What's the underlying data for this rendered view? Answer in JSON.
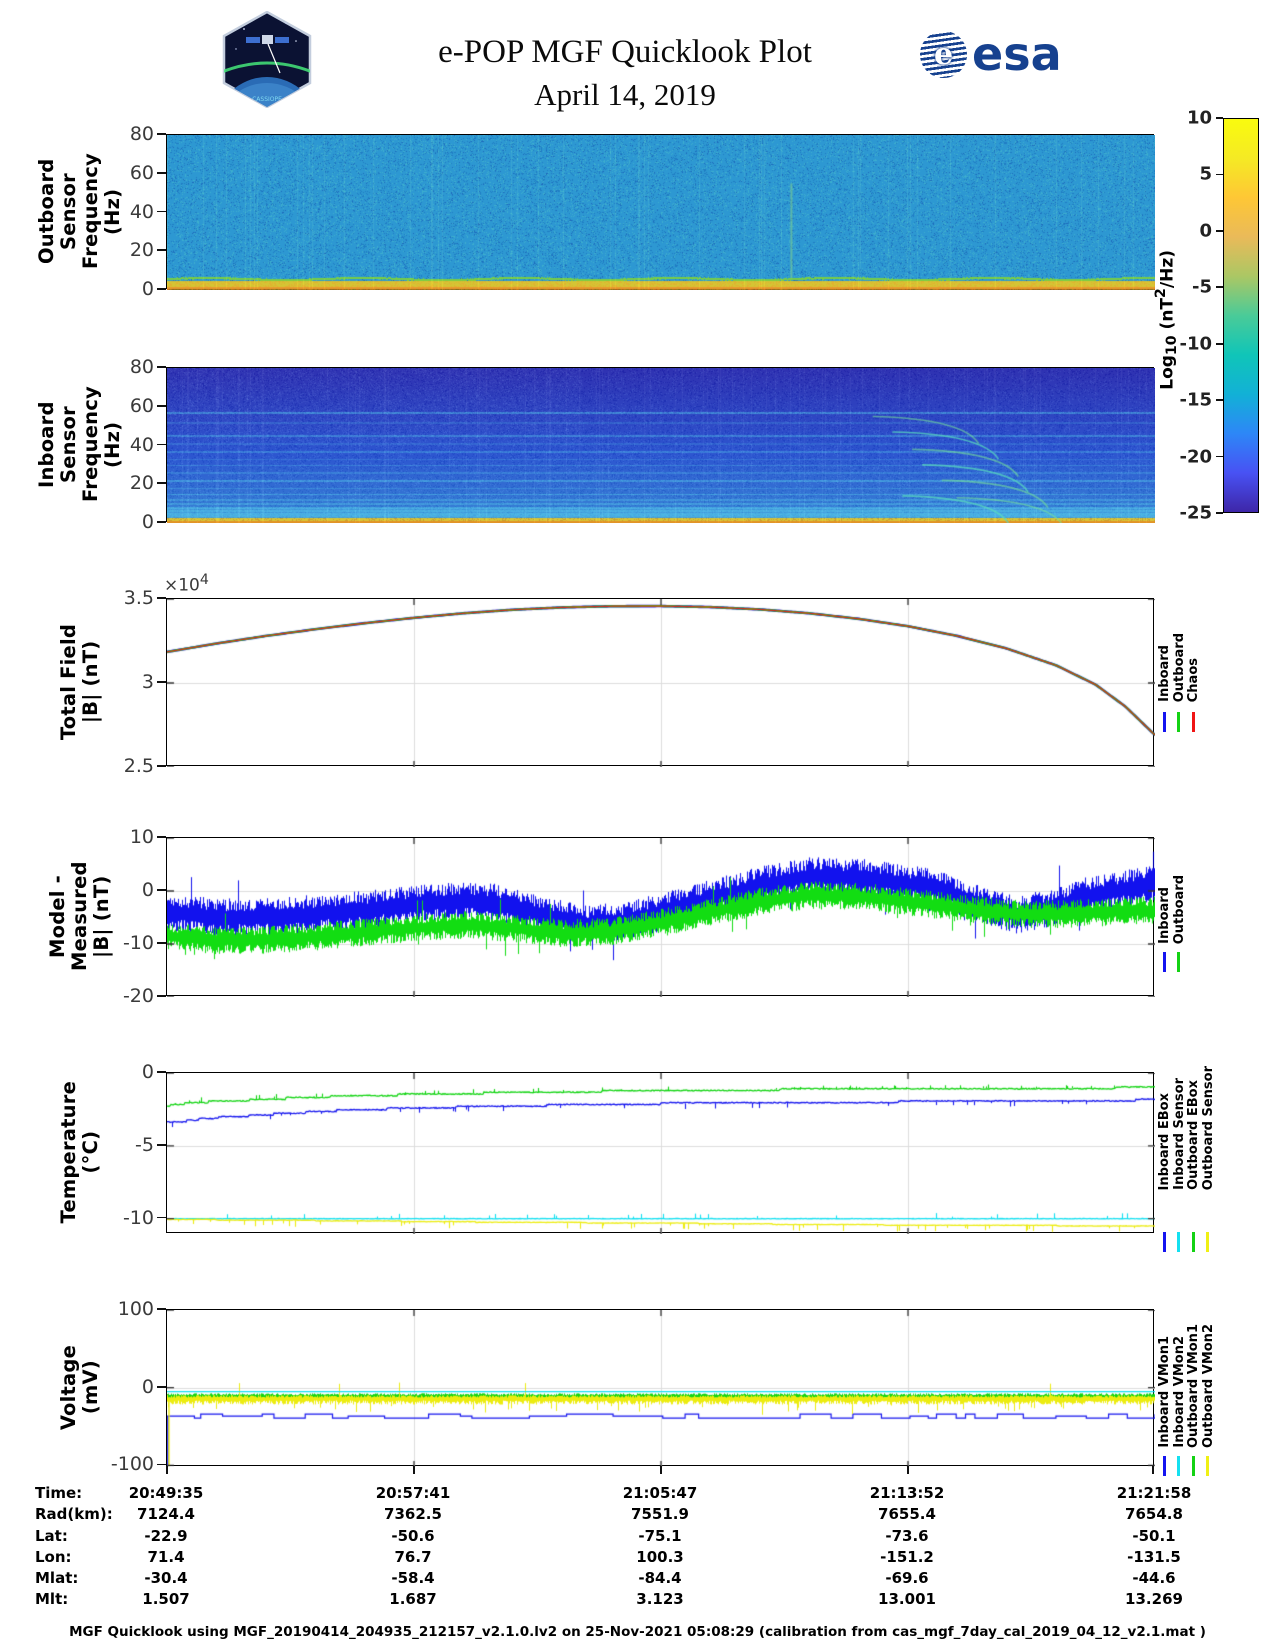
{
  "header": {
    "title": "e-POP MGF Quicklook Plot",
    "date": "April 14, 2019",
    "esa_text": "esa",
    "patch_text": "CASSIOPE"
  },
  "colorbar": {
    "label_prefix": "Log",
    "label_sub": "10",
    "label_mid": " (nT",
    "label_sup": "2",
    "label_suffix": "/Hz)",
    "ticks": [
      "10",
      "5",
      "0",
      "-5",
      "-10",
      "-15",
      "-20",
      "-25"
    ],
    "gradient": [
      "#f9fb0e",
      "#f5ea24",
      "#fec735",
      "#eaba59",
      "#abc764",
      "#4acb98",
      "#10c5b8",
      "#12b1d6",
      "#2d87f7",
      "#4852f4",
      "#3e26a8"
    ]
  },
  "time_axis": {
    "ticks": [
      "20:49:35",
      "20:57:41",
      "21:05:47",
      "21:13:52",
      "21:21:58"
    ]
  },
  "chart_data": [
    {
      "id": "outboard-spectrogram",
      "type": "heatmap",
      "ylabel": "Outboard Sensor\nFrequency (Hz)",
      "ylim": [
        0,
        80
      ],
      "yticks": [
        "80",
        "60",
        "40",
        "20",
        "0"
      ],
      "value_units": "Log10 (nT^2/Hz)",
      "base_level": -13,
      "features": {
        "green_line_hz": 6,
        "yellow_band_hz": [
          2,
          5
        ],
        "orange_band_hz": [
          0,
          2
        ],
        "burst_x": 0.632
      },
      "palette": {
        "base": [
          45,
          152,
          210
        ],
        "dark": [
          32,
          125,
          196
        ],
        "light": [
          62,
          175,
          206
        ],
        "green": [
          120,
          205,
          70
        ],
        "yellow": [
          213,
          197,
          52
        ],
        "orange": [
          232,
          152,
          44
        ]
      },
      "seed": 7
    },
    {
      "id": "inboard-spectrogram",
      "type": "heatmap",
      "ylabel": "Inboard Sensor\nFrequency (Hz)",
      "ylim": [
        0,
        80
      ],
      "yticks": [
        "80",
        "60",
        "40",
        "20",
        "0"
      ],
      "value_units": "Log10 (nT^2/Hz)",
      "base_level": -17,
      "stripes_hz": [
        [
          57,
          0.5
        ],
        [
          52,
          0.22
        ],
        [
          45,
          0.42
        ],
        [
          41,
          0.2
        ],
        [
          37,
          0.38
        ],
        [
          33,
          0.24
        ],
        [
          30,
          0.34
        ],
        [
          26,
          0.3
        ],
        [
          22,
          0.5
        ],
        [
          18,
          0.34
        ],
        [
          15,
          0.55
        ],
        [
          12,
          0.4
        ],
        [
          10,
          0.45
        ],
        [
          8,
          0.55
        ],
        [
          6.5,
          0.5
        ],
        [
          5,
          0.55
        ],
        [
          4,
          0.5
        ]
      ],
      "arcs": [
        [
          0.775,
          55
        ],
        [
          0.795,
          47
        ],
        [
          0.815,
          38
        ],
        [
          0.825,
          30
        ],
        [
          0.845,
          22
        ],
        [
          0.805,
          14
        ],
        [
          0.86,
          13
        ]
      ],
      "palette": {
        "top": [
          47,
          50,
          178
        ],
        "mid": [
          45,
          85,
          208
        ],
        "bottom": [
          56,
          135,
          214
        ],
        "stripe": [
          82,
          196,
          232
        ],
        "yellow": [
          214,
          198,
          55
        ],
        "orange": [
          226,
          148,
          40
        ]
      },
      "seed": 13
    },
    {
      "id": "total-field",
      "type": "line",
      "ylabel": "Total Field\n|B| (nT)",
      "exp_prefix": "×10",
      "exp_sup": "4",
      "ylim": [
        35000,
        25000
      ],
      "yticks": [
        {
          "v": 35000,
          "t": "3.5"
        },
        {
          "v": 30000,
          "t": "3"
        },
        {
          "v": 25000,
          "t": "2.5"
        }
      ],
      "grid_y": [
        30000
      ],
      "legend": [
        {
          "label": "Inboard",
          "color": "#1414f0"
        },
        {
          "label": "Outboard",
          "color": "#14d214"
        },
        {
          "label": "Chaos",
          "color": "#f01414"
        }
      ],
      "x": [
        0,
        0.05,
        0.1,
        0.15,
        0.2,
        0.25,
        0.3,
        0.35,
        0.4,
        0.45,
        0.5,
        0.55,
        0.6,
        0.65,
        0.7,
        0.75,
        0.8,
        0.85,
        0.9,
        0.94,
        0.97,
        1
      ],
      "y": [
        31850,
        32350,
        32800,
        33200,
        33560,
        33880,
        34150,
        34360,
        34500,
        34570,
        34580,
        34520,
        34380,
        34150,
        33820,
        33380,
        32800,
        32050,
        31050,
        29900,
        28600,
        26900
      ],
      "series": [
        {
          "name": "Inboard",
          "color": "#1414f0",
          "style": "line",
          "width": 2.6,
          "seed": 11
        },
        {
          "name": "Outboard",
          "color": "#14d214",
          "style": "line",
          "width": 2.0,
          "seed": 12
        },
        {
          "name": "Chaos",
          "color": "#e02810",
          "style": "line",
          "width": 1.2,
          "seed": 14
        }
      ]
    },
    {
      "id": "model-measured",
      "type": "line",
      "ylabel": "Model - Measured\n|B| (nT)",
      "ylim": [
        10,
        -20
      ],
      "yticks": [
        {
          "v": 10,
          "t": "10"
        },
        {
          "v": 0,
          "t": "0"
        },
        {
          "v": -10,
          "t": "-10"
        },
        {
          "v": -20,
          "t": "-20"
        }
      ],
      "grid_y": [
        0,
        -10
      ],
      "legend": [
        {
          "label": "Inboard",
          "color": "#1414f0"
        },
        {
          "label": "Outboard",
          "color": "#14d214"
        }
      ],
      "series": [
        {
          "name": "Inboard",
          "color": "#1212ee",
          "style": "noisy",
          "amp": 3.3,
          "spike_p": 0.03,
          "spike": 4,
          "seed": 21,
          "x": [
            0,
            0.05,
            0.1,
            0.15,
            0.2,
            0.25,
            0.3,
            0.33,
            0.37,
            0.42,
            0.46,
            0.5,
            0.55,
            0.6,
            0.65,
            0.7,
            0.73,
            0.78,
            0.82,
            0.86,
            0.9,
            0.93,
            0.96,
            1
          ],
          "y": [
            -4,
            -5,
            -5,
            -4.3,
            -3.6,
            -2.6,
            -1.8,
            -2.2,
            -4,
            -6.3,
            -5.8,
            -4,
            -1.5,
            1,
            2.8,
            2.5,
            1.8,
            0.5,
            -2.5,
            -4.5,
            -3,
            -1,
            0,
            1.5
          ]
        },
        {
          "name": "Outboard",
          "color": "#12dd12",
          "style": "noisy",
          "amp": 2.4,
          "spike_p": 0.02,
          "spike": 3,
          "seed": 22,
          "x": [
            0,
            0.05,
            0.1,
            0.15,
            0.2,
            0.25,
            0.3,
            0.35,
            0.4,
            0.45,
            0.5,
            0.55,
            0.6,
            0.65,
            0.7,
            0.75,
            0.8,
            0.85,
            0.9,
            0.95,
            1
          ],
          "y": [
            -8.5,
            -9.3,
            -9.2,
            -8.6,
            -7.8,
            -7,
            -6.4,
            -7,
            -8,
            -7.6,
            -6,
            -4,
            -2,
            -0.8,
            -1,
            -2,
            -3.2,
            -4.2,
            -4.4,
            -4,
            -3.6
          ]
        }
      ]
    },
    {
      "id": "temperature",
      "type": "line",
      "ylabel": "Temperature\n(°C)",
      "ylim": [
        0,
        -11.05
      ],
      "yticks": [
        {
          "v": 0,
          "t": "0"
        },
        {
          "v": -5,
          "t": "-5"
        },
        {
          "v": -10,
          "t": "-10"
        }
      ],
      "grid_y": [
        -5
      ],
      "legend": [
        {
          "label": "Inboard EBox",
          "color": "#1414f0"
        },
        {
          "label": "Inboard Sensor",
          "color": "#14e0f0"
        },
        {
          "label": "Outboard EBox",
          "color": "#14d214"
        },
        {
          "label": "Outboard Sensor",
          "color": "#f0f014"
        }
      ],
      "series": [
        {
          "name": "Inboard EBox",
          "color": "#1515ee",
          "style": "spiky",
          "dir": -1,
          "spike": 0.3,
          "spike_p": 0.035,
          "q": 0.12,
          "seed": 31,
          "x": [
            0,
            0.02,
            0.04,
            0.07,
            0.1,
            0.14,
            0.18,
            0.25,
            0.32,
            0.4,
            0.5,
            0.6,
            0.7,
            0.8,
            0.9,
            1
          ],
          "y": [
            -3.35,
            -3.3,
            -3.1,
            -3.0,
            -2.85,
            -2.7,
            -2.55,
            -2.4,
            -2.3,
            -2.2,
            -2.1,
            -2.05,
            -2.0,
            -1.95,
            -1.9,
            -1.85
          ]
        },
        {
          "name": "Outboard EBox",
          "color": "#12d412",
          "style": "spiky",
          "dir": 1,
          "spike": 0.25,
          "spike_p": 0.045,
          "q": 0.12,
          "seed": 32,
          "x": [
            0,
            0.03,
            0.06,
            0.1,
            0.15,
            0.2,
            0.3,
            0.4,
            0.5,
            0.6,
            0.7,
            0.8,
            0.9,
            1
          ],
          "y": [
            -2.25,
            -2.0,
            -1.95,
            -1.8,
            -1.65,
            -1.55,
            -1.4,
            -1.3,
            -1.2,
            -1.15,
            -1.1,
            -1.05,
            -1.05,
            -1.0
          ]
        },
        {
          "name": "Inboard Sensor",
          "color": "#10dff0",
          "style": "spiky",
          "dir": 1,
          "spike": 0.3,
          "spike_p": 0.03,
          "q": 0.05,
          "seed": 33,
          "x": [
            0,
            1
          ],
          "y": [
            -10,
            -10
          ]
        },
        {
          "name": "Outboard Sensor",
          "color": "#ecec10",
          "style": "spiky",
          "dir": -1,
          "spike": 0.35,
          "spike_p": 0.05,
          "q": 0.05,
          "seed": 34,
          "x": [
            0,
            0.2,
            0.35,
            0.5,
            0.65,
            0.8,
            1
          ],
          "y": [
            -10.05,
            -10.15,
            -10.25,
            -10.3,
            -10.4,
            -10.45,
            -10.5
          ]
        }
      ]
    },
    {
      "id": "voltage",
      "type": "line",
      "ylabel": "Voltage\n(mV)",
      "ylim": [
        100,
        -102
      ],
      "yticks": [
        {
          "v": 100,
          "t": "100"
        },
        {
          "v": 0,
          "t": "0"
        },
        {
          "v": -100,
          "t": "-100"
        }
      ],
      "grid_y": [
        0
      ],
      "legend": [
        {
          "label": "Inboard VMon1",
          "color": "#1414f0"
        },
        {
          "label": "Inboard VMon2",
          "color": "#14e0f0"
        },
        {
          "label": "Outboard VMon1",
          "color": "#14d214"
        },
        {
          "label": "Outboard VMon2",
          "color": "#f0f014"
        }
      ],
      "series": [
        {
          "name": "Inboard VMon1",
          "color": "#1515ee",
          "style": "step",
          "base": -36.5,
          "range": 5,
          "seed": 44,
          "transient": true
        },
        {
          "name": "Outboard VMon1",
          "color": "#12d412",
          "style": "noisy",
          "amp": 3.5,
          "seed": 42,
          "x": [
            0,
            1
          ],
          "y": [
            -11,
            -11
          ]
        },
        {
          "name": "Outboard VMon2",
          "color": "#ecec10",
          "style": "noisy",
          "amp": 7,
          "amp_up": 4,
          "spike_p": 0.05,
          "spike": 14,
          "seed": 43,
          "x": [
            0,
            1
          ],
          "y": [
            -14,
            -14
          ],
          "transient": true
        },
        {
          "name": "Inboard VMon2",
          "color": "#10dff0",
          "style": "line",
          "width": 1.4,
          "seed": 41,
          "x": [
            0,
            1
          ],
          "y": [
            -5,
            -5
          ]
        }
      ]
    }
  ],
  "table": {
    "rows": [
      {
        "label": "Time:",
        "values": [
          "20:49:35",
          "20:57:41",
          "21:05:47",
          "21:13:52",
          "21:21:58"
        ]
      },
      {
        "label": "Rad(km):",
        "values": [
          "7124.4",
          "7362.5",
          "7551.9",
          "7655.4",
          "7654.8"
        ]
      },
      {
        "label": "Lat:",
        "values": [
          "-22.9",
          "-50.6",
          "-75.1",
          "-73.6",
          "-50.1"
        ]
      },
      {
        "label": "Lon:",
        "values": [
          "71.4",
          "76.7",
          "100.3",
          "-151.2",
          "-131.5"
        ]
      },
      {
        "label": "Mlat:",
        "values": [
          "-30.4",
          "-58.4",
          "-84.4",
          "-69.6",
          "-44.6"
        ]
      },
      {
        "label": "Mlt:",
        "values": [
          "1.507",
          "1.687",
          "3.123",
          "13.001",
          "13.269"
        ]
      }
    ]
  },
  "footer": "MGF Quicklook using MGF_20190414_204935_212157_v2.1.0.lv2 on 25-Nov-2021 05:08:29 (calibration from cas_mgf_7day_cal_2019_04_12_v2.1.mat )"
}
